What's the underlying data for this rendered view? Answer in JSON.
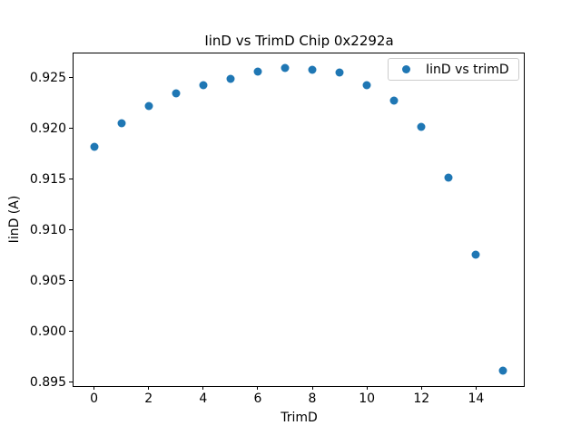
{
  "chart_data": {
    "type": "scatter",
    "title": "IinD vs TrimD Chip 0x2292a",
    "xlabel": "TrimD",
    "ylabel": "IinD (A)",
    "legend": {
      "label": "IinD vs trimD",
      "position": "upper right"
    },
    "marker_color": "#1f77b4",
    "grid": false,
    "x": [
      0,
      1,
      2,
      3,
      4,
      5,
      6,
      7,
      8,
      9,
      10,
      11,
      12,
      13,
      14,
      15
    ],
    "y": [
      0.9182,
      0.9205,
      0.9222,
      0.9235,
      0.9243,
      0.9249,
      0.9256,
      0.926,
      0.9258,
      0.9255,
      0.9243,
      0.9228,
      0.9202,
      0.9152,
      0.9076,
      0.8961
    ],
    "xlim": [
      -0.75,
      15.75
    ],
    "ylim": [
      0.8946,
      0.9275
    ],
    "xticks": [
      0,
      2,
      4,
      6,
      8,
      10,
      12,
      14
    ],
    "xtick_labels": [
      "0",
      "2",
      "4",
      "6",
      "8",
      "10",
      "12",
      "14"
    ],
    "yticks": [
      0.895,
      0.9,
      0.905,
      0.91,
      0.915,
      0.92,
      0.925
    ],
    "ytick_labels": [
      "0.895",
      "0.900",
      "0.905",
      "0.910",
      "0.915",
      "0.920",
      "0.925"
    ]
  }
}
